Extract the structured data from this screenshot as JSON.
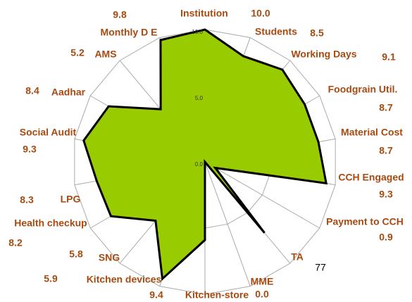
{
  "chart_data": {
    "type": "radar",
    "categories": [
      "Institution",
      "Students",
      "Working Days",
      "Foodgrain Util.",
      "Material Cost",
      "CCH Engaged",
      "Payment to CCH",
      "TA",
      "MME",
      "Kitchen-store",
      "Kitchen devices",
      "SNG",
      "Health checkup",
      "LPG",
      "Social Audit",
      "Aadhar",
      "AMS",
      "Monthly D E"
    ],
    "series": [
      {
        "color": "#99cc00",
        "values": [
          10.0,
          8.5,
          9.1,
          8.7,
          8.7,
          9.3,
          0.9,
          7.0,
          0.0,
          5.9,
          9.4,
          5.8,
          8.2,
          8.3,
          9.3,
          8.4,
          5.2,
          9.8
        ],
        "value_labels": [
          "10.0",
          "8.5",
          "9.1",
          "8.7",
          "8.7",
          "9.3",
          "0.9",
          null,
          "0.0",
          "5.9",
          "9.4",
          "5.8",
          "8.2",
          "8.3",
          "9.3",
          "8.4",
          "5.2",
          "9.8"
        ]
      }
    ],
    "annotations": [
      "77"
    ],
    "rlim": [
      0,
      10
    ],
    "rticks": [
      {
        "value": 0,
        "label": "0.0"
      },
      {
        "value": 5,
        "label": "5.0"
      },
      {
        "value": 10,
        "label": "10.0"
      }
    ]
  }
}
